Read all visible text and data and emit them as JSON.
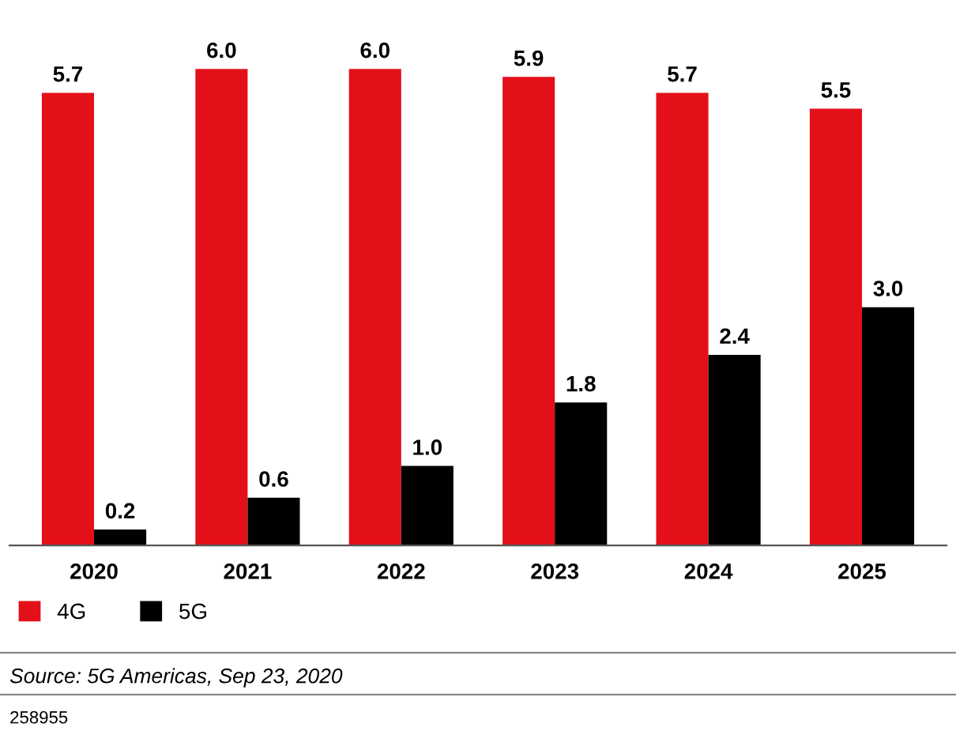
{
  "chart_data": {
    "type": "bar",
    "categories": [
      "2020",
      "2021",
      "2022",
      "2023",
      "2024",
      "2025"
    ],
    "series": [
      {
        "name": "4G",
        "color": "#e3101a",
        "values": [
          5.7,
          6.0,
          6.0,
          5.9,
          5.7,
          5.5
        ],
        "value_labels": [
          "5.7",
          "6.0",
          "6.0",
          "5.9",
          "5.7",
          "5.5"
        ]
      },
      {
        "name": "5G",
        "color": "#000000",
        "values": [
          0.2,
          0.6,
          1.0,
          1.8,
          2.4,
          3.0
        ],
        "value_labels": [
          "0.2",
          "0.6",
          "1.0",
          "1.8",
          "2.4",
          "3.0"
        ]
      }
    ],
    "legend": "bottom left",
    "grid": false,
    "annotations": [
      "Source: 5G Americas, Sep 23, 2020",
      "258955"
    ]
  }
}
